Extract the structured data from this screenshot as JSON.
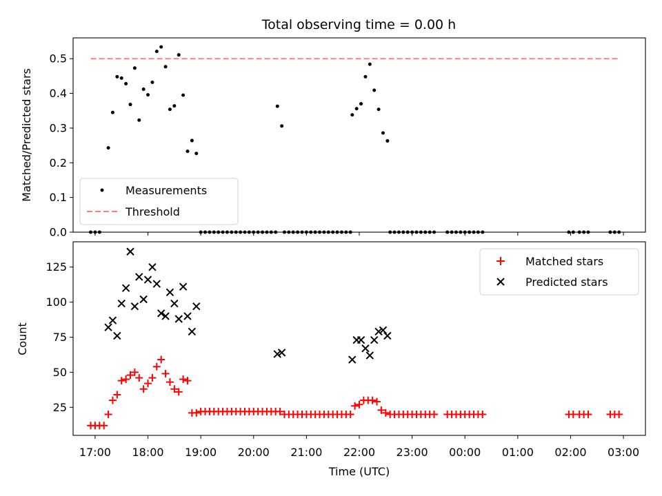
{
  "title": "Total observing time = 0.00 h",
  "colors": {
    "measurement": "#000000",
    "threshold": "#ff7f7f",
    "matched": "#ff0000",
    "predicted": "#000000"
  },
  "chart_data": [
    {
      "type": "scatter",
      "ylabel": "Matched/Predicted stars",
      "xlabel": "",
      "xlim": [
        "16:35",
        "03:25"
      ],
      "ylim": [
        0,
        0.56
      ],
      "yticks": [
        "0.0",
        "0.1",
        "0.2",
        "0.3",
        "0.4",
        "0.5"
      ],
      "grid": false,
      "legend": {
        "placement": "lower-left",
        "entries": [
          "Measurements",
          "Threshold"
        ]
      },
      "threshold": {
        "name": "Threshold",
        "value": 0.5,
        "x_range": [
          "16:55",
          "02:55"
        ]
      },
      "series": [
        {
          "name": "Measurements",
          "marker": "dot",
          "points": [
            [
              "16:55",
              0
            ],
            [
              "17:00",
              0
            ],
            [
              "17:05",
              0
            ],
            [
              "17:15",
              0.243
            ],
            [
              "17:20",
              0.345
            ],
            [
              "17:25",
              0.448
            ],
            [
              "17:30",
              0.444
            ],
            [
              "17:35",
              0.428
            ],
            [
              "17:40",
              0.368
            ],
            [
              "17:45",
              0.473
            ],
            [
              "17:50",
              0.323
            ],
            [
              "17:55",
              0.412
            ],
            [
              "18:00",
              0.396
            ],
            [
              "18:05",
              0.432
            ],
            [
              "18:10",
              0.521
            ],
            [
              "18:15",
              0.534
            ],
            [
              "18:20",
              0.477
            ],
            [
              "18:25",
              0.354
            ],
            [
              "18:30",
              0.364
            ],
            [
              "18:35",
              0.511
            ],
            [
              "18:40",
              0.395
            ],
            [
              "18:45",
              0.233
            ],
            [
              "18:50",
              0.264
            ],
            [
              "18:55",
              0.227
            ],
            [
              "19:00",
              0
            ],
            [
              "19:05",
              0
            ],
            [
              "19:10",
              0
            ],
            [
              "19:15",
              0
            ],
            [
              "19:20",
              0
            ],
            [
              "19:25",
              0
            ],
            [
              "19:30",
              0
            ],
            [
              "19:35",
              0
            ],
            [
              "19:40",
              0
            ],
            [
              "19:45",
              0
            ],
            [
              "19:50",
              0
            ],
            [
              "19:55",
              0
            ],
            [
              "20:00",
              0
            ],
            [
              "20:05",
              0
            ],
            [
              "20:10",
              0
            ],
            [
              "20:15",
              0
            ],
            [
              "20:20",
              0
            ],
            [
              "20:25",
              0
            ],
            [
              "20:27",
              0.363
            ],
            [
              "20:32",
              0.306
            ],
            [
              "20:35",
              0
            ],
            [
              "20:40",
              0
            ],
            [
              "20:45",
              0
            ],
            [
              "20:50",
              0
            ],
            [
              "20:55",
              0
            ],
            [
              "21:00",
              0
            ],
            [
              "21:05",
              0
            ],
            [
              "21:10",
              0
            ],
            [
              "21:15",
              0
            ],
            [
              "21:20",
              0
            ],
            [
              "21:25",
              0
            ],
            [
              "21:30",
              0
            ],
            [
              "21:35",
              0
            ],
            [
              "21:40",
              0
            ],
            [
              "21:45",
              0
            ],
            [
              "21:50",
              0
            ],
            [
              "21:52",
              0.338
            ],
            [
              "21:57",
              0.356
            ],
            [
              "22:02",
              0.37
            ],
            [
              "22:07",
              0.448
            ],
            [
              "22:12",
              0.484
            ],
            [
              "22:17",
              0.409
            ],
            [
              "22:22",
              0.354
            ],
            [
              "22:27",
              0.286
            ],
            [
              "22:32",
              0.263
            ],
            [
              "22:35",
              0
            ],
            [
              "22:40",
              0
            ],
            [
              "22:45",
              0
            ],
            [
              "22:50",
              0
            ],
            [
              "22:55",
              0
            ],
            [
              "23:00",
              0
            ],
            [
              "23:05",
              0
            ],
            [
              "23:10",
              0
            ],
            [
              "23:15",
              0
            ],
            [
              "23:20",
              0
            ],
            [
              "23:25",
              0
            ],
            [
              "23:40",
              0
            ],
            [
              "23:45",
              0
            ],
            [
              "23:50",
              0
            ],
            [
              "23:55",
              0
            ],
            [
              "00:00",
              0
            ],
            [
              "00:05",
              0
            ],
            [
              "00:10",
              0
            ],
            [
              "00:15",
              0
            ],
            [
              "00:20",
              0
            ],
            [
              "01:58",
              0
            ],
            [
              "02:03",
              0
            ],
            [
              "02:10",
              0
            ],
            [
              "02:15",
              0
            ],
            [
              "02:20",
              0
            ],
            [
              "02:45",
              0
            ],
            [
              "02:50",
              0
            ],
            [
              "02:55",
              0
            ]
          ]
        }
      ]
    },
    {
      "type": "scatter",
      "xlabel": "Time (UTC)",
      "ylabel": "Count",
      "xlim": [
        "16:35",
        "03:25"
      ],
      "ylim": [
        5,
        143
      ],
      "xticks": [
        "17:00",
        "18:00",
        "19:00",
        "20:00",
        "21:00",
        "22:00",
        "23:00",
        "00:00",
        "01:00",
        "02:00",
        "03:00"
      ],
      "yticks": [
        "25",
        "50",
        "75",
        "100",
        "125"
      ],
      "grid": false,
      "legend": {
        "placement": "top-right",
        "entries": [
          "Matched stars",
          "Predicted stars"
        ]
      },
      "series": [
        {
          "name": "Matched stars",
          "marker": "plus",
          "points": [
            [
              "16:55",
              12
            ],
            [
              "17:00",
              12
            ],
            [
              "17:05",
              12
            ],
            [
              "17:10",
              12
            ],
            [
              "17:15",
              20
            ],
            [
              "17:20",
              30
            ],
            [
              "17:25",
              34
            ],
            [
              "17:30",
              44
            ],
            [
              "17:35",
              45
            ],
            [
              "17:40",
              48
            ],
            [
              "17:45",
              50
            ],
            [
              "17:50",
              46
            ],
            [
              "17:55",
              38
            ],
            [
              "18:00",
              42
            ],
            [
              "18:05",
              46
            ],
            [
              "18:10",
              54
            ],
            [
              "18:15",
              59
            ],
            [
              "18:20",
              49
            ],
            [
              "18:25",
              43
            ],
            [
              "18:30",
              38
            ],
            [
              "18:35",
              36
            ],
            [
              "18:40",
              45
            ],
            [
              "18:45",
              44
            ],
            [
              "18:50",
              21
            ],
            [
              "18:55",
              21
            ],
            [
              "19:00",
              22
            ],
            [
              "19:05",
              22
            ],
            [
              "19:10",
              22
            ],
            [
              "19:15",
              22
            ],
            [
              "19:20",
              22
            ],
            [
              "19:25",
              22
            ],
            [
              "19:30",
              22
            ],
            [
              "19:35",
              22
            ],
            [
              "19:40",
              22
            ],
            [
              "19:45",
              22
            ],
            [
              "19:50",
              22
            ],
            [
              "19:55",
              22
            ],
            [
              "20:00",
              22
            ],
            [
              "20:05",
              22
            ],
            [
              "20:10",
              22
            ],
            [
              "20:15",
              22
            ],
            [
              "20:20",
              22
            ],
            [
              "20:25",
              22
            ],
            [
              "20:30",
              22
            ],
            [
              "20:35",
              20
            ],
            [
              "20:40",
              20
            ],
            [
              "20:45",
              20
            ],
            [
              "20:50",
              20
            ],
            [
              "20:55",
              20
            ],
            [
              "21:00",
              20
            ],
            [
              "21:05",
              20
            ],
            [
              "21:10",
              20
            ],
            [
              "21:15",
              20
            ],
            [
              "21:20",
              20
            ],
            [
              "21:25",
              20
            ],
            [
              "21:30",
              20
            ],
            [
              "21:35",
              20
            ],
            [
              "21:40",
              20
            ],
            [
              "21:45",
              20
            ],
            [
              "21:50",
              20
            ],
            [
              "21:55",
              26
            ],
            [
              "22:00",
              27
            ],
            [
              "22:05",
              30
            ],
            [
              "22:10",
              30
            ],
            [
              "22:15",
              30
            ],
            [
              "22:20",
              29
            ],
            [
              "22:25",
              23
            ],
            [
              "22:30",
              21
            ],
            [
              "22:35",
              20
            ],
            [
              "22:40",
              20
            ],
            [
              "22:45",
              20
            ],
            [
              "22:50",
              20
            ],
            [
              "22:55",
              20
            ],
            [
              "23:00",
              20
            ],
            [
              "23:05",
              20
            ],
            [
              "23:10",
              20
            ],
            [
              "23:15",
              20
            ],
            [
              "23:20",
              20
            ],
            [
              "23:25",
              20
            ],
            [
              "23:40",
              20
            ],
            [
              "23:45",
              20
            ],
            [
              "23:50",
              20
            ],
            [
              "23:55",
              20
            ],
            [
              "00:00",
              20
            ],
            [
              "00:05",
              20
            ],
            [
              "00:10",
              20
            ],
            [
              "00:15",
              20
            ],
            [
              "00:20",
              20
            ],
            [
              "01:58",
              20
            ],
            [
              "02:03",
              20
            ],
            [
              "02:10",
              20
            ],
            [
              "02:15",
              20
            ],
            [
              "02:20",
              20
            ],
            [
              "02:45",
              20
            ],
            [
              "02:50",
              20
            ],
            [
              "02:55",
              20
            ]
          ]
        },
        {
          "name": "Predicted stars",
          "marker": "x",
          "points": [
            [
              "17:15",
              82
            ],
            [
              "17:20",
              87
            ],
            [
              "17:25",
              76
            ],
            [
              "17:30",
              99
            ],
            [
              "17:35",
              110
            ],
            [
              "17:40",
              136
            ],
            [
              "17:45",
              97
            ],
            [
              "17:50",
              118
            ],
            [
              "17:55",
              102
            ],
            [
              "18:00",
              116
            ],
            [
              "18:05",
              125
            ],
            [
              "18:10",
              113
            ],
            [
              "18:15",
              92
            ],
            [
              "18:20",
              90
            ],
            [
              "18:25",
              107
            ],
            [
              "18:30",
              99
            ],
            [
              "18:35",
              88
            ],
            [
              "18:40",
              111
            ],
            [
              "18:45",
              90
            ],
            [
              "18:50",
              79
            ],
            [
              "18:55",
              97
            ],
            [
              "20:27",
              63
            ],
            [
              "20:32",
              64
            ],
            [
              "21:52",
              59
            ],
            [
              "21:57",
              73
            ],
            [
              "22:02",
              73
            ],
            [
              "22:07",
              67
            ],
            [
              "22:12",
              62
            ],
            [
              "22:17",
              73
            ],
            [
              "22:22",
              79
            ],
            [
              "22:27",
              80
            ],
            [
              "22:32",
              76
            ]
          ]
        }
      ]
    }
  ]
}
